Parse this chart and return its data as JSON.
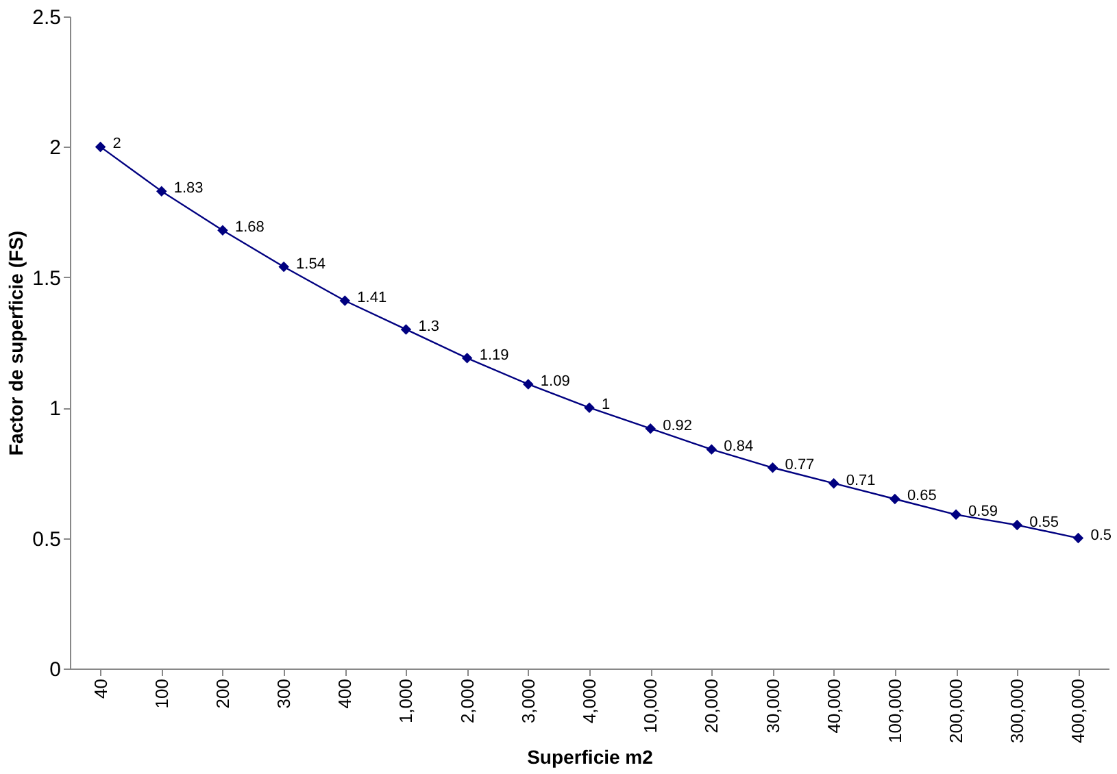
{
  "chart_data": {
    "type": "line",
    "xlabel": "Superficie m2",
    "ylabel": "Factor de superficie (FS)",
    "categories": [
      "40",
      "100",
      "200",
      "300",
      "400",
      "1,000",
      "2,000",
      "3,000",
      "4,000",
      "10,000",
      "20,000",
      "30,000",
      "40,000",
      "100,000",
      "200,000",
      "300,000",
      "400,000"
    ],
    "series": [
      {
        "color": "#000080",
        "values": [
          2,
          1.83,
          1.68,
          1.54,
          1.41,
          1.3,
          1.19,
          1.09,
          1,
          0.92,
          0.84,
          0.77,
          0.71,
          0.65,
          0.59,
          0.55,
          0.5
        ]
      }
    ],
    "ylim": [
      0,
      2.5
    ],
    "yticks": [
      0,
      0.5,
      1,
      1.5,
      2,
      2.5
    ],
    "grid": false,
    "legend": false,
    "marker": "diamond",
    "line_style": "solid",
    "data_labels": true
  }
}
